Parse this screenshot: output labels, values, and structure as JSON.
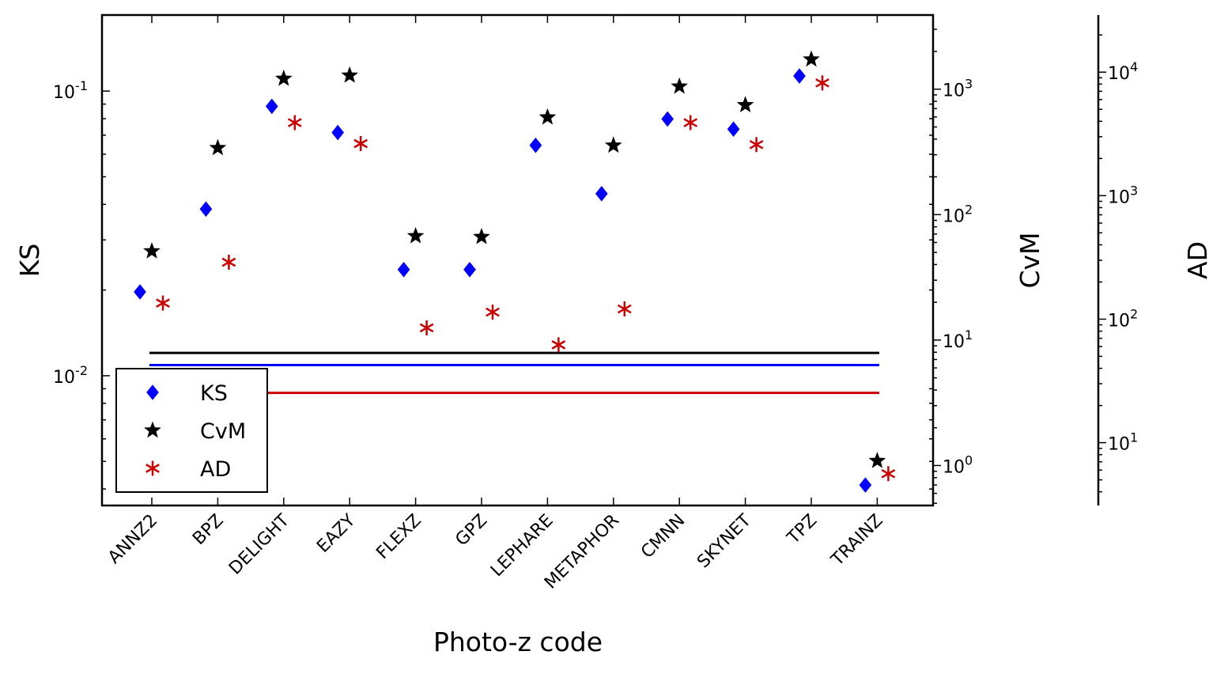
{
  "chart_data": {
    "type": "scatter",
    "xlabel": "Photo-z code",
    "categories": [
      "ANNZ2",
      "BPZ",
      "DELIGHT",
      "EAZY",
      "FLEXZ",
      "GPZ",
      "LEPHARE",
      "METAPHOR",
      "CMNN",
      "SKYNET",
      "TPZ",
      "TRAINZ"
    ],
    "axes": [
      {
        "name": "KS",
        "label": "KS",
        "scale": "log",
        "range": [
          0.0035,
          0.185
        ],
        "ticks": [
          {
            "value": 0.01,
            "base": "10",
            "exp": "-2"
          },
          {
            "value": 0.1,
            "base": "10",
            "exp": "-1"
          }
        ]
      },
      {
        "name": "CvM",
        "label": "CvM",
        "scale": "log",
        "range": [
          0.48,
          3900
        ],
        "ticks": [
          {
            "value": 1,
            "base": "10",
            "exp": "0"
          },
          {
            "value": 10,
            "base": "10",
            "exp": "1"
          },
          {
            "value": 100,
            "base": "10",
            "exp": "2"
          },
          {
            "value": 1000,
            "base": "10",
            "exp": "3"
          }
        ]
      },
      {
        "name": "AD",
        "label": "AD",
        "scale": "log",
        "range": [
          3.1,
          29000
        ],
        "ticks": [
          {
            "value": 10,
            "base": "10",
            "exp": "1"
          },
          {
            "value": 100,
            "base": "10",
            "exp": "2"
          },
          {
            "value": 1000,
            "base": "10",
            "exp": "3"
          },
          {
            "value": 10000,
            "base": "10",
            "exp": "4"
          }
        ]
      }
    ],
    "series": [
      {
        "name": "KS",
        "axis": "KS",
        "marker": "diamond",
        "color": "#0000ff",
        "values": [
          0.0197,
          0.0385,
          0.0884,
          0.0715,
          0.0236,
          0.0236,
          0.0645,
          0.0436,
          0.0798,
          0.0735,
          0.113,
          0.00413
        ]
      },
      {
        "name": "CvM",
        "axis": "CvM",
        "marker": "star",
        "color": "#000000",
        "values": [
          51.1,
          340,
          1213,
          1287,
          67.5,
          66.5,
          597,
          356,
          1052,
          748,
          1729,
          1.09
        ]
      },
      {
        "name": "AD",
        "axis": "AD",
        "marker": "asterisk",
        "color": "#cc0000",
        "values": [
          135,
          289,
          3900,
          2640,
          85,
          114,
          62,
          121,
          3900,
          2590,
          8180,
          5.61
        ]
      }
    ],
    "reference_lines": [
      {
        "axis": "KS",
        "value": 0.0109,
        "color": "#0000ff"
      },
      {
        "axis": "AD",
        "value": 25.3,
        "color": "#cc0000"
      },
      {
        "axis": "CvM",
        "value": 7.9,
        "color": "#000000"
      }
    ],
    "legend": {
      "placement": "bottom-left",
      "entries": [
        "KS",
        "CvM",
        "AD"
      ]
    }
  }
}
